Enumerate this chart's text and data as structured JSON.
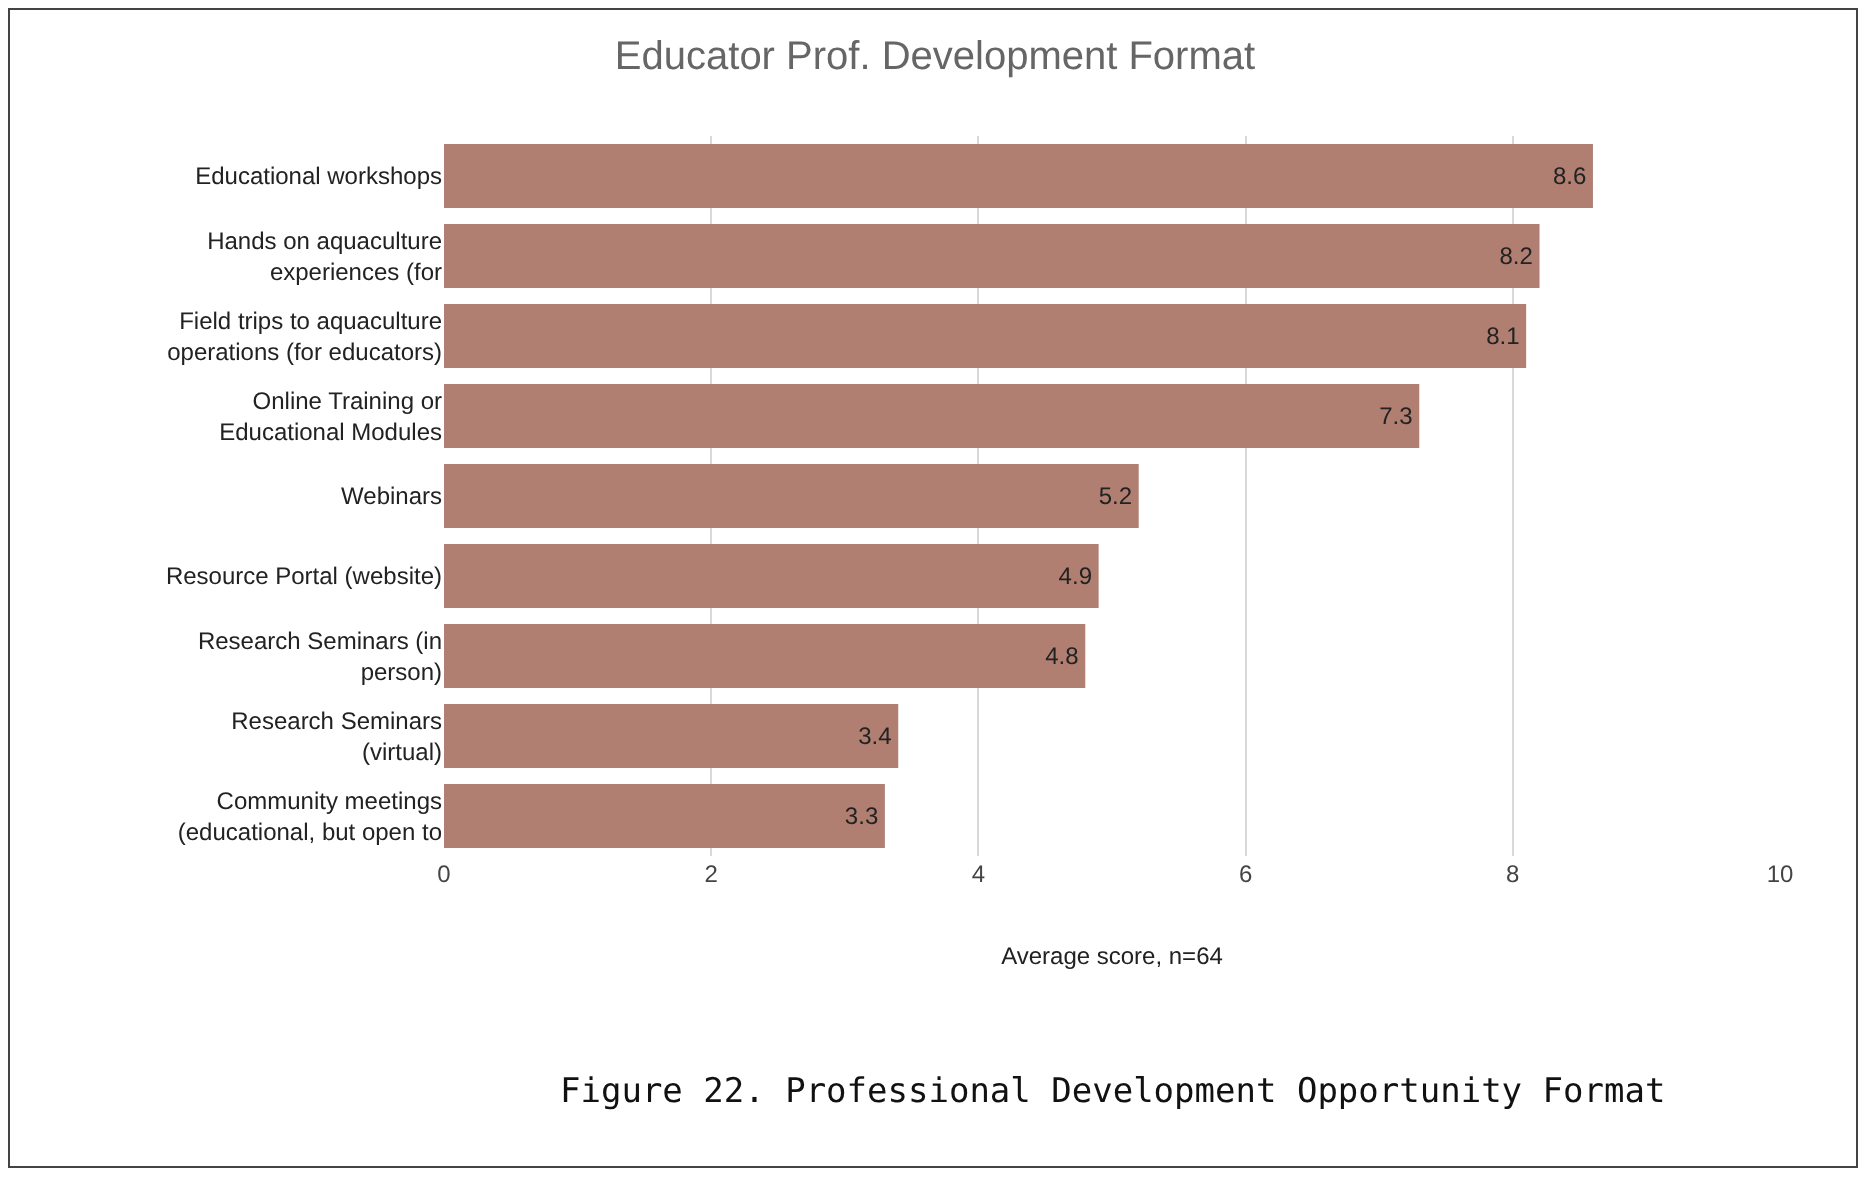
{
  "chart_data": {
    "type": "bar",
    "orientation": "horizontal",
    "title": "Educator Prof. Development Format",
    "xlabel": "Average score, n=64",
    "categories": [
      "Educational workshops",
      "Hands on aquaculture experiences (for",
      "Field trips to aquaculture operations (for educators)",
      "Online Training or Educational Modules",
      "Webinars",
      "Resource Portal (website)",
      "Research Seminars (in person)",
      "Research Seminars (virtual)",
      "Community meetings (educational, but open to"
    ],
    "values": [
      8.6,
      8.2,
      8.1,
      7.3,
      5.2,
      4.9,
      4.8,
      3.4,
      3.3
    ],
    "color": "#b07f72",
    "data_labels": true,
    "xlim": [
      0,
      10
    ],
    "xticks": [
      0,
      2,
      4,
      6,
      8,
      10
    ],
    "grid": "x",
    "annotations": [
      "Figure 22. Professional Development Opportunity Format"
    ]
  }
}
